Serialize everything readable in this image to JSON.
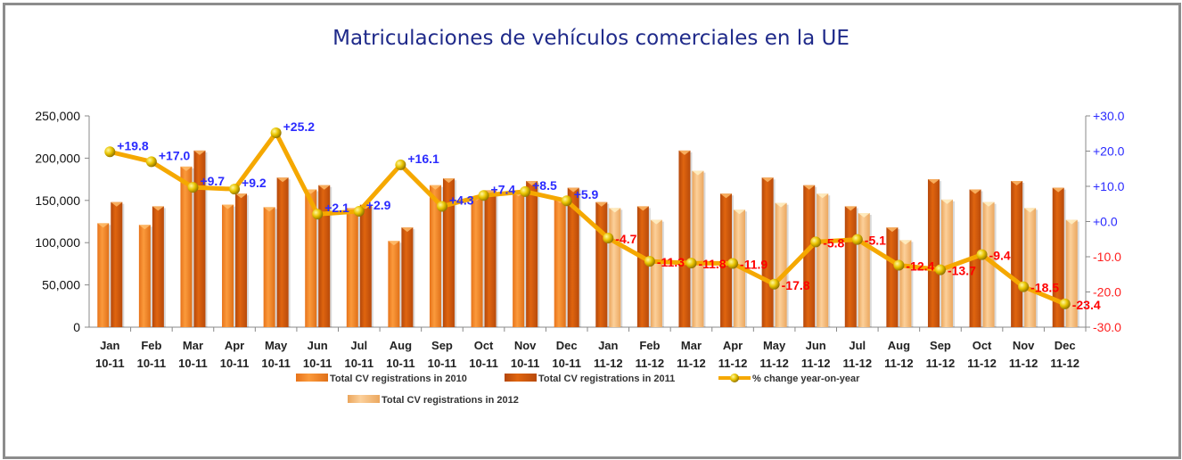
{
  "chart_data": {
    "type": "bar",
    "title": "Matriculaciones de vehículos comerciales en la UE",
    "categories": [
      [
        "Jan",
        "10-11"
      ],
      [
        "Feb",
        "10-11"
      ],
      [
        "Mar",
        "10-11"
      ],
      [
        "Apr",
        "10-11"
      ],
      [
        "May",
        "10-11"
      ],
      [
        "Jun",
        "10-11"
      ],
      [
        "Jul",
        "10-11"
      ],
      [
        "Aug",
        "10-11"
      ],
      [
        "Sep",
        "10-11"
      ],
      [
        "Oct",
        "10-11"
      ],
      [
        "Nov",
        "10-11"
      ],
      [
        "Dec",
        "10-11"
      ],
      [
        "Jan",
        "11-12"
      ],
      [
        "Feb",
        "11-12"
      ],
      [
        "Mar",
        "11-12"
      ],
      [
        "Apr",
        "11-12"
      ],
      [
        "May",
        "11-12"
      ],
      [
        "Jun",
        "11-12"
      ],
      [
        "Jul",
        "11-12"
      ],
      [
        "Aug",
        "11-12"
      ],
      [
        "Sep",
        "11-12"
      ],
      [
        "Oct",
        "11-12"
      ],
      [
        "Nov",
        "11-12"
      ],
      [
        "Dec",
        "11-12"
      ]
    ],
    "y_left": {
      "range": [
        0,
        250000
      ],
      "ticks": [
        "0",
        "50,000",
        "100,000",
        "150,000",
        "200,000",
        "250,000"
      ]
    },
    "y_right": {
      "range": [
        -30,
        30
      ],
      "ticks": [
        "-30.0",
        "-20.0",
        "-10.0",
        "+0.0",
        "+10.0",
        "+20.0",
        "+30.0"
      ]
    },
    "series": [
      {
        "name": "Total CV registrations in 2010",
        "type": "bar",
        "color": "#f58a2a",
        "values": [
          123000,
          121000,
          190000,
          145000,
          142000,
          163000,
          141000,
          102000,
          168000,
          155000,
          160000,
          152000,
          null,
          null,
          null,
          null,
          null,
          null,
          null,
          null,
          null,
          null,
          null,
          null
        ]
      },
      {
        "name": "Total CV registrations in 2011",
        "type": "bar",
        "color": "#d35a0c",
        "values": [
          148000,
          143000,
          209000,
          158000,
          177000,
          168000,
          145000,
          118000,
          176000,
          162000,
          173000,
          165000,
          148000,
          143000,
          209000,
          158000,
          177000,
          168000,
          143000,
          118000,
          175000,
          163000,
          173000,
          165000
        ]
      },
      {
        "name": "Total CV registrations in 2012",
        "type": "bar",
        "color": "#f9bf7c",
        "values": [
          null,
          null,
          null,
          null,
          null,
          null,
          null,
          null,
          null,
          null,
          null,
          null,
          141000,
          127000,
          185000,
          139000,
          147000,
          158000,
          135000,
          103000,
          151000,
          148000,
          141000,
          127000
        ]
      },
      {
        "name": "% change year-on-year",
        "type": "line",
        "axis": "right",
        "color": "#f5a800",
        "values": [
          19.8,
          17.0,
          9.7,
          9.2,
          25.2,
          2.1,
          2.9,
          16.1,
          4.3,
          7.4,
          8.5,
          5.9,
          -4.7,
          -11.3,
          -11.8,
          -11.9,
          -17.8,
          -5.8,
          -5.1,
          -12.4,
          -13.7,
          -9.4,
          -18.5,
          -23.4
        ],
        "labels": [
          "+19.8",
          "+17.0",
          "+9.7",
          "+9.2",
          "+25.2",
          "+2.1",
          "+2.9",
          "+16.1",
          "+4.3",
          "+7.4",
          "+8.5",
          "+5.9",
          "-4.7",
          "-11.3",
          "-11.8",
          "-11.9",
          "-17.8",
          "-5.8",
          "-5.1",
          "-12.4",
          "-13.7",
          "-9.4",
          "-18.5",
          "-23.4"
        ]
      }
    ],
    "positive_label_color": "#2b2bff",
    "negative_label_color": "#ff0000",
    "legend_position": "bottom",
    "grid": false
  }
}
